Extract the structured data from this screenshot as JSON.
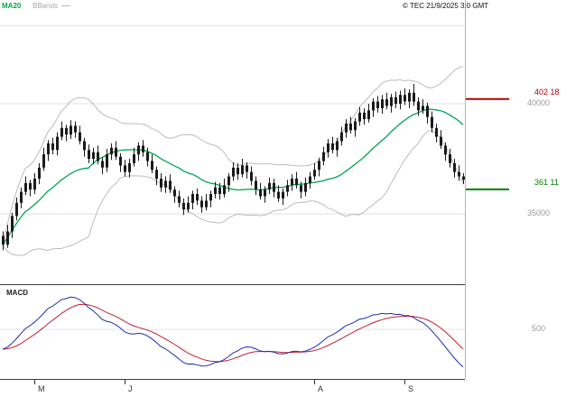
{
  "header": {
    "ma20_label": "MA20",
    "bbands_label": "BBands",
    "copyright": "© TEC 21/9/2025 3:0 GMT"
  },
  "macd_panel": {
    "label": "MACD"
  },
  "colors": {
    "ma20": "#00a651",
    "bbands": "#bcbcbc",
    "candle": "#1b1b1b",
    "resistance": "#b80000",
    "support": "#008000",
    "macd_line": "#1f2fae",
    "macd_signal": "#c41f33",
    "gridline": "#e2e2e2",
    "axis_label": "#9a9a9a",
    "axis_line": "#3c3c3c",
    "tick_label": "#333333"
  },
  "chart_data": {
    "type": "candlestick",
    "panels": [
      "price",
      "macd"
    ],
    "x_ticks": [
      {
        "label": "M",
        "index": 7
      },
      {
        "label": "J",
        "index": 27
      },
      {
        "label": "A",
        "index": 69
      },
      {
        "label": "S",
        "index": 89
      }
    ],
    "price_gridlines": [
      {
        "label": "40000",
        "value": 40000
      },
      {
        "label": "35000",
        "value": 35000
      }
    ],
    "levels": {
      "resistance": {
        "label": "402 18",
        "value": 40218
      },
      "support": {
        "label": "361 11",
        "value": 36111
      }
    },
    "overlays": [
      {
        "name": "MA20",
        "type": "sma",
        "period": 20
      },
      {
        "name": "BBands",
        "type": "bollinger",
        "period": 20,
        "stddev": 2
      }
    ],
    "macd": {
      "fast": 12,
      "slow": 26,
      "signal": 9,
      "gridline": {
        "label": "500",
        "value": 500
      }
    },
    "candles": [
      [
        34000,
        34200,
        33350,
        33600
      ],
      [
        33600,
        34500,
        33450,
        34200
      ],
      [
        34200,
        35050,
        33900,
        34900
      ],
      [
        34900,
        35750,
        34700,
        35500
      ],
      [
        35500,
        36200,
        35250,
        36000
      ],
      [
        36000,
        36700,
        35850,
        36400
      ],
      [
        36400,
        36550,
        35800,
        36100
      ],
      [
        36100,
        36850,
        35900,
        36600
      ],
      [
        36600,
        37300,
        36350,
        37100
      ],
      [
        37100,
        38000,
        36950,
        37700
      ],
      [
        37700,
        38350,
        37400,
        38200
      ],
      [
        38200,
        38450,
        37700,
        37900
      ],
      [
        37900,
        38700,
        37650,
        38500
      ],
      [
        38500,
        39200,
        38350,
        38900
      ],
      [
        38900,
        39050,
        38300,
        38600
      ],
      [
        38600,
        39250,
        38400,
        39000
      ],
      [
        39000,
        39200,
        38450,
        38700
      ],
      [
        38700,
        39000,
        38150,
        38300
      ],
      [
        38300,
        38450,
        37600,
        37900
      ],
      [
        37900,
        38150,
        37300,
        37500
      ],
      [
        37500,
        38000,
        37250,
        37800
      ],
      [
        37800,
        38100,
        37250,
        37400
      ],
      [
        37400,
        37550,
        36800,
        37100
      ],
      [
        37100,
        37950,
        36900,
        37700
      ],
      [
        37700,
        38200,
        37450,
        38000
      ],
      [
        38000,
        38300,
        37450,
        37600
      ],
      [
        37600,
        37750,
        36900,
        37200
      ],
      [
        37200,
        37450,
        36700,
        36900
      ],
      [
        36900,
        37500,
        36650,
        37300
      ],
      [
        37300,
        38000,
        37150,
        37700
      ],
      [
        37700,
        38250,
        37400,
        38100
      ],
      [
        38100,
        38350,
        37600,
        37800
      ],
      [
        37800,
        38000,
        37150,
        37400
      ],
      [
        37400,
        37700,
        36850,
        37000
      ],
      [
        37000,
        37150,
        36300,
        36600
      ],
      [
        36600,
        36850,
        36000,
        36200
      ],
      [
        36200,
        36700,
        35950,
        36500
      ],
      [
        36500,
        36800,
        35950,
        36100
      ],
      [
        36100,
        36250,
        35500,
        35800
      ],
      [
        35800,
        36050,
        35300,
        35500
      ],
      [
        35500,
        35700,
        34950,
        35200
      ],
      [
        35200,
        35800,
        35050,
        35500
      ],
      [
        35500,
        36050,
        35200,
        35900
      ],
      [
        35900,
        36150,
        35400,
        35600
      ],
      [
        35600,
        35800,
        35050,
        35300
      ],
      [
        35300,
        35900,
        35150,
        35600
      ],
      [
        35600,
        36050,
        35300,
        35900
      ],
      [
        35900,
        36450,
        35700,
        36200
      ],
      [
        36200,
        36400,
        35650,
        35900
      ],
      [
        35900,
        36600,
        35750,
        36300
      ],
      [
        36300,
        36850,
        36000,
        36700
      ],
      [
        36700,
        37350,
        36500,
        37100
      ],
      [
        37100,
        37300,
        36550,
        36800
      ],
      [
        36800,
        37500,
        36650,
        37200
      ],
      [
        37200,
        37350,
        36600,
        36900
      ],
      [
        36900,
        37150,
        36300,
        36500
      ],
      [
        36500,
        36700,
        35850,
        36100
      ],
      [
        36100,
        36400,
        35650,
        35800
      ],
      [
        35800,
        36250,
        35500,
        36100
      ],
      [
        36100,
        36650,
        35900,
        36400
      ],
      [
        36400,
        36600,
        35750,
        36000
      ],
      [
        36000,
        36300,
        35550,
        35700
      ],
      [
        35700,
        36150,
        35400,
        36000
      ],
      [
        36000,
        36550,
        35800,
        36300
      ],
      [
        36300,
        36800,
        36050,
        36600
      ],
      [
        36600,
        36900,
        36150,
        36300
      ],
      [
        36300,
        36450,
        35700,
        36000
      ],
      [
        36000,
        36650,
        35800,
        36400
      ],
      [
        36400,
        36900,
        36150,
        36700
      ],
      [
        36700,
        37300,
        36550,
        37000
      ],
      [
        37000,
        37550,
        36700,
        37400
      ],
      [
        37400,
        38050,
        37200,
        37800
      ],
      [
        37800,
        38400,
        37550,
        38200
      ],
      [
        38200,
        38500,
        37750,
        37900
      ],
      [
        37900,
        38450,
        37600,
        38300
      ],
      [
        38300,
        38950,
        38100,
        38700
      ],
      [
        38700,
        39300,
        38450,
        39100
      ],
      [
        39100,
        39400,
        38650,
        38800
      ],
      [
        38800,
        39350,
        38500,
        39200
      ],
      [
        39200,
        39850,
        39000,
        39600
      ],
      [
        39600,
        39800,
        39050,
        39300
      ],
      [
        39300,
        40000,
        39150,
        39700
      ],
      [
        39700,
        40250,
        39400,
        40100
      ],
      [
        40100,
        40350,
        39600,
        39800
      ],
      [
        39800,
        40400,
        39550,
        40200
      ],
      [
        40200,
        40500,
        39750,
        39900
      ],
      [
        39900,
        40450,
        39600,
        40300
      ],
      [
        40300,
        40550,
        39800,
        40000
      ],
      [
        40000,
        40600,
        39750,
        40400
      ],
      [
        40400,
        40700,
        39950,
        40100
      ],
      [
        40100,
        40650,
        39800,
        40500
      ],
      [
        40500,
        40900,
        39900,
        40100
      ],
      [
        40100,
        40300,
        39450,
        39700
      ],
      [
        39700,
        40200,
        39550,
        39900
      ],
      [
        39900,
        40050,
        39100,
        39400
      ],
      [
        39400,
        39650,
        38700,
        38900
      ],
      [
        38900,
        39100,
        38250,
        38500
      ],
      [
        38500,
        38800,
        37950,
        38100
      ],
      [
        38100,
        38250,
        37400,
        37700
      ],
      [
        37700,
        37950,
        37100,
        37300
      ],
      [
        37300,
        37500,
        36650,
        36900
      ],
      [
        36900,
        37200,
        36500,
        36700
      ],
      [
        36700,
        36850,
        36350,
        36550
      ]
    ]
  }
}
